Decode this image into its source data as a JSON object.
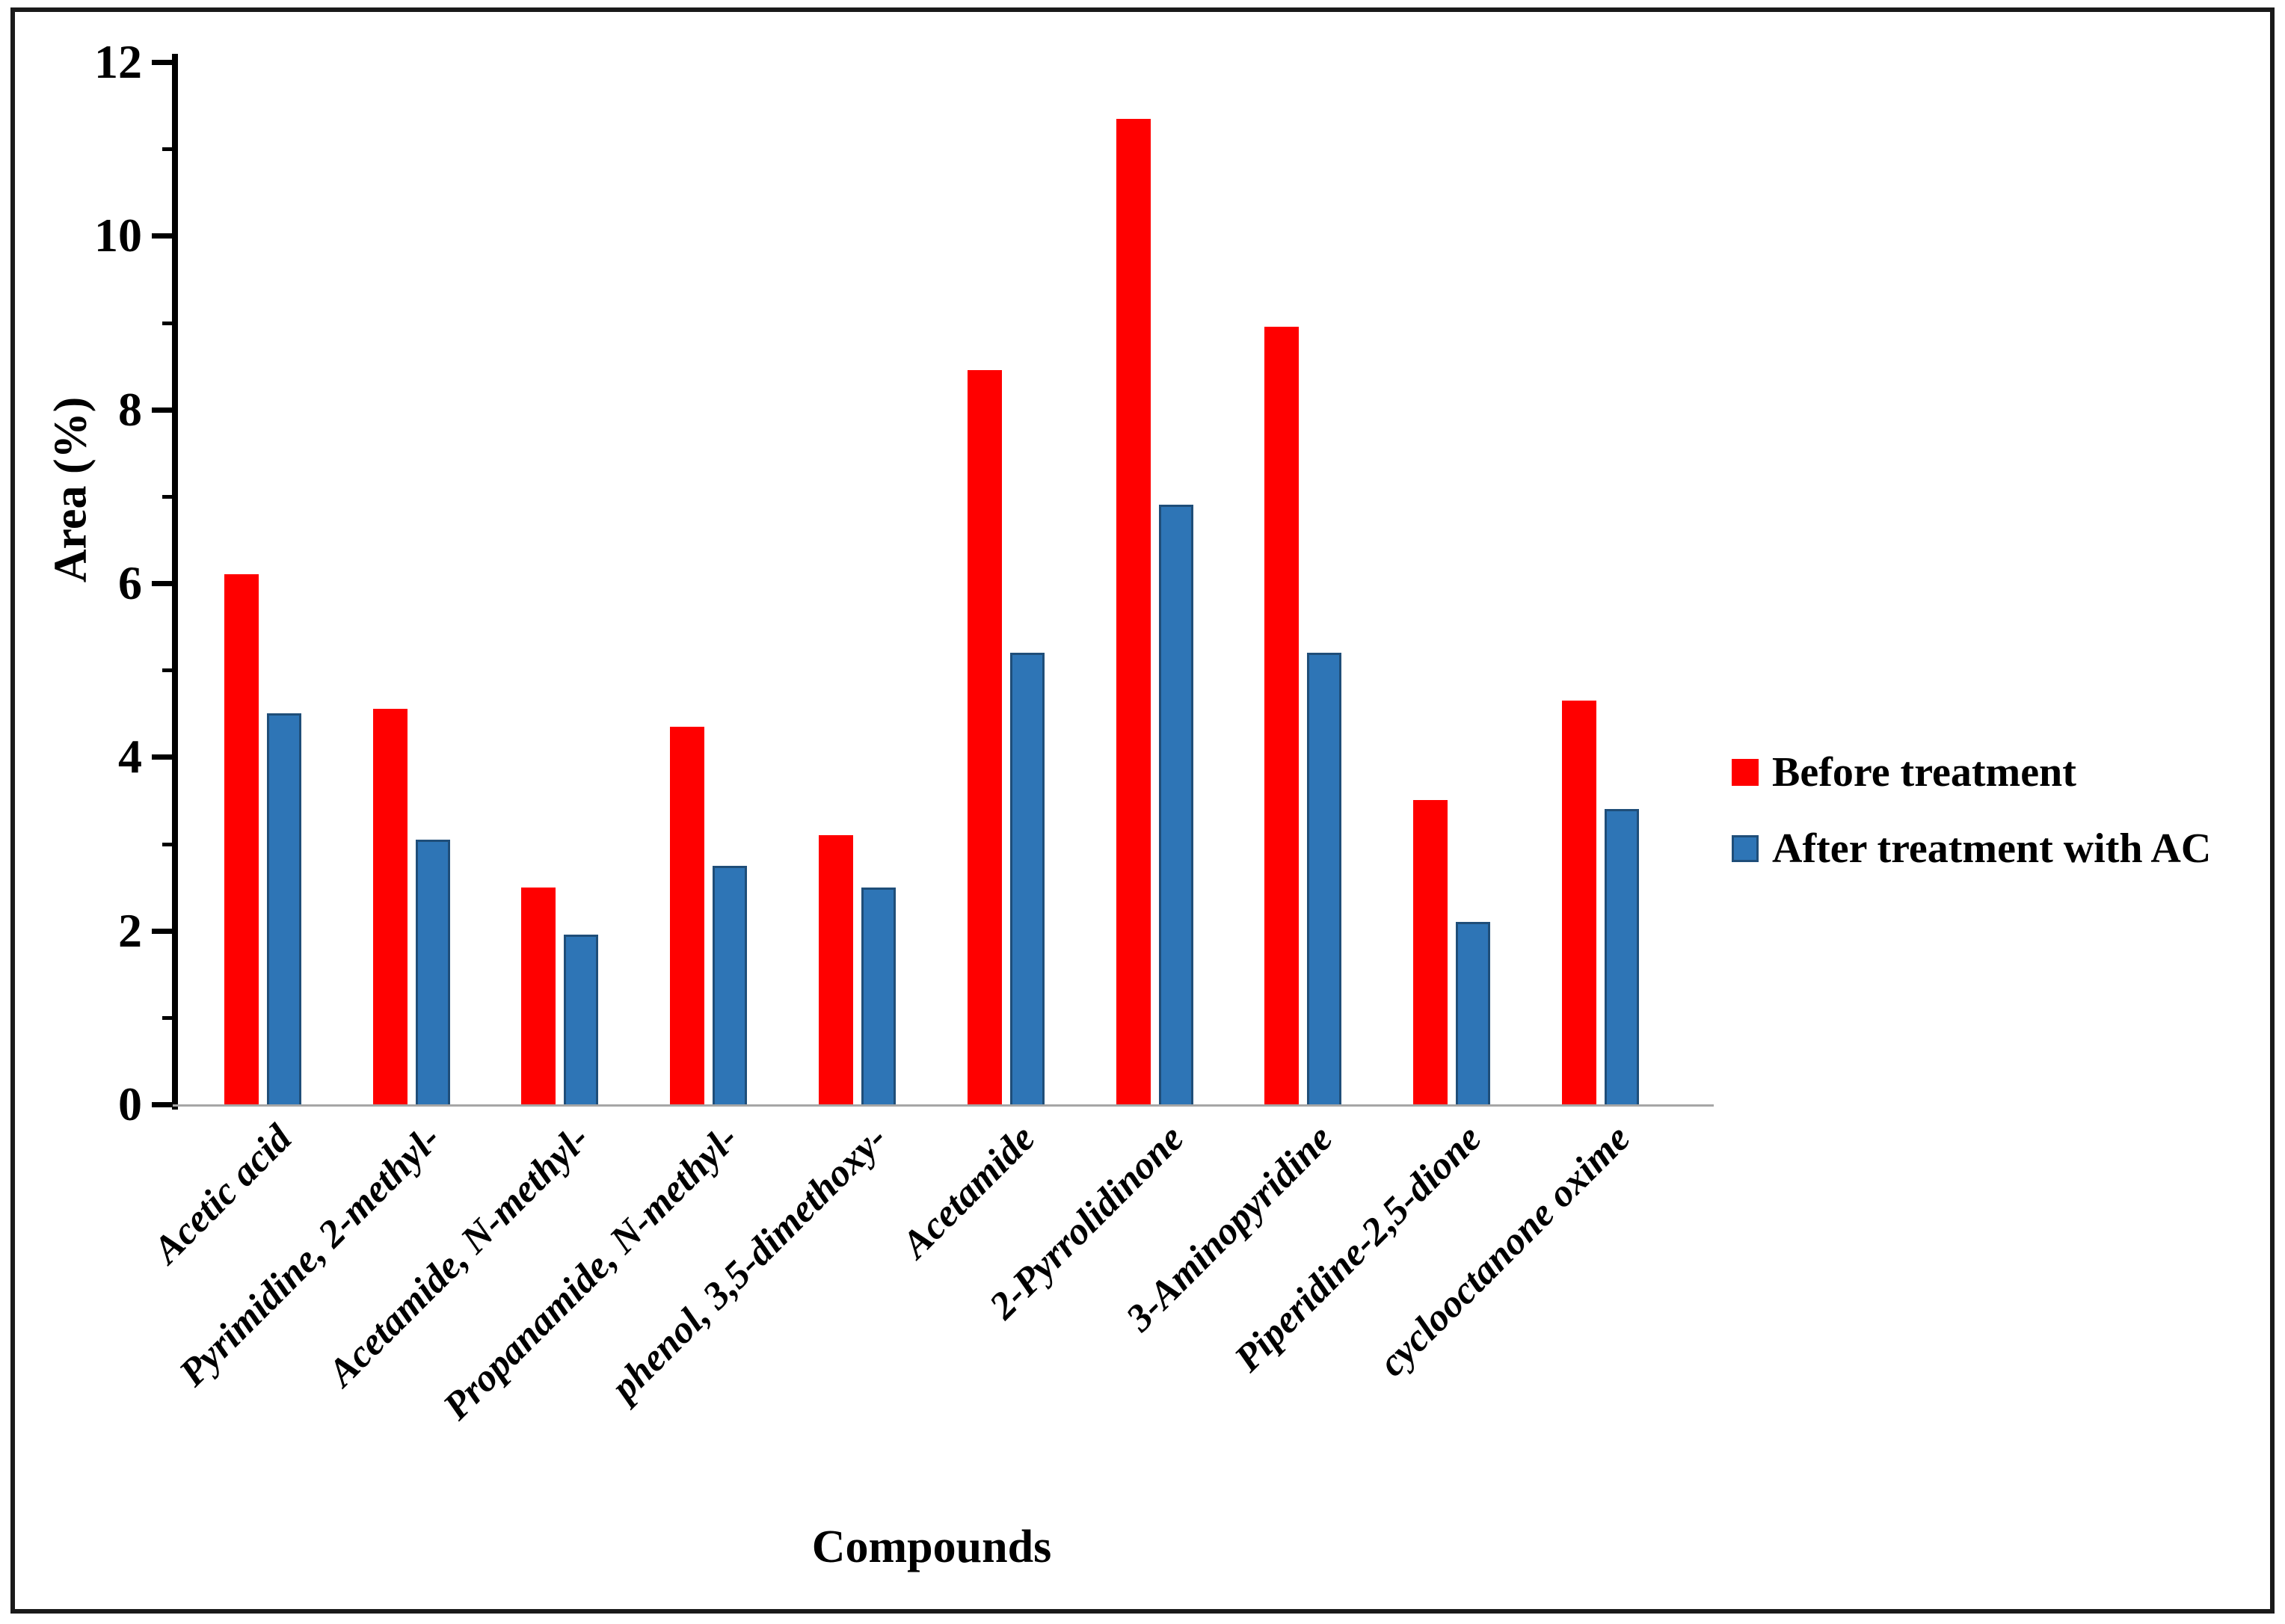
{
  "figure": {
    "xlabel": "Compounds",
    "ylabel": "Area (%)"
  },
  "legend": {
    "items": [
      {
        "label": "Before treatment",
        "color": "#ff0000"
      },
      {
        "label": "After treatment with AC",
        "color": "#2e75b6"
      }
    ]
  },
  "chart_data": {
    "type": "bar",
    "title": "",
    "xlabel": "Compounds",
    "ylabel": "Area (%)",
    "ylim": [
      0,
      12
    ],
    "yticks_major": [
      0,
      2,
      4,
      6,
      8,
      10,
      12
    ],
    "yticks_minor": [
      1,
      3,
      5,
      7,
      9,
      11
    ],
    "grid": false,
    "legend_position": "right",
    "bar_colors": {
      "before": "#ff0000",
      "after_fill": "#2e75b6",
      "after_border": "#1f4e79"
    },
    "categories": [
      "Acetic acid",
      "Pyrimidine, 2-methyl-",
      "Acetamide, N-methyl-",
      "Propanamide, N-methyl-",
      "phenol, 3,5-dimethoxy-",
      "Acetamide",
      "2-Pyrrolidinone",
      "3-Aminopyridine",
      "Piperidine-2,5-dione",
      "cyclooctanone oxime"
    ],
    "series": [
      {
        "name": "Before treatment",
        "color": "#ff0000",
        "values": [
          6.1,
          4.55,
          2.5,
          4.35,
          3.1,
          8.45,
          11.35,
          8.95,
          3.5,
          4.65
        ]
      },
      {
        "name": "After treatment with AC",
        "color": "#2e75b6",
        "values": [
          4.5,
          3.05,
          1.95,
          2.75,
          2.5,
          5.2,
          6.9,
          5.2,
          2.1,
          3.4
        ]
      }
    ]
  }
}
